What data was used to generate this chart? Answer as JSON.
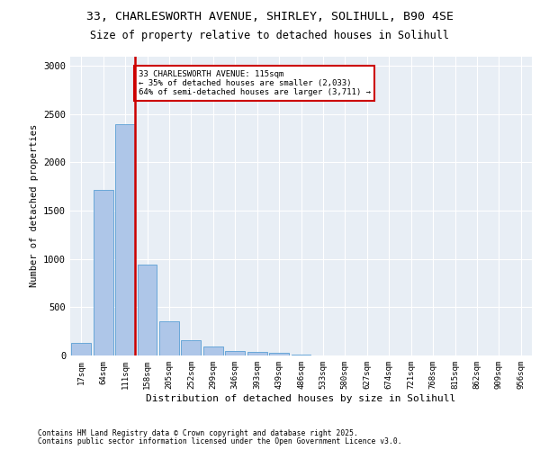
{
  "title1": "33, CHARLESWORTH AVENUE, SHIRLEY, SOLIHULL, B90 4SE",
  "title2": "Size of property relative to detached houses in Solihull",
  "xlabel": "Distribution of detached houses by size in Solihull",
  "ylabel": "Number of detached properties",
  "categories": [
    "17sqm",
    "64sqm",
    "111sqm",
    "158sqm",
    "205sqm",
    "252sqm",
    "299sqm",
    "346sqm",
    "393sqm",
    "439sqm",
    "486sqm",
    "533sqm",
    "580sqm",
    "627sqm",
    "674sqm",
    "721sqm",
    "768sqm",
    "815sqm",
    "862sqm",
    "909sqm",
    "956sqm"
  ],
  "values": [
    130,
    1720,
    2400,
    940,
    350,
    160,
    90,
    50,
    40,
    30,
    5,
    2,
    1,
    1,
    0,
    0,
    0,
    0,
    0,
    0,
    0
  ],
  "bar_color": "#aec6e8",
  "bar_edge_color": "#5a9fd4",
  "vline_color": "#cc0000",
  "vline_bar_index": 2,
  "annotation_text": "33 CHARLESWORTH AVENUE: 115sqm\n← 35% of detached houses are smaller (2,033)\n64% of semi-detached houses are larger (3,711) →",
  "annotation_box_color": "#cc0000",
  "bg_color": "#e8eef5",
  "grid_color": "#ffffff",
  "ylim": [
    0,
    3100
  ],
  "yticks": [
    0,
    500,
    1000,
    1500,
    2000,
    2500,
    3000
  ],
  "footer_line1": "Contains HM Land Registry data © Crown copyright and database right 2025.",
  "footer_line2": "Contains public sector information licensed under the Open Government Licence v3.0."
}
